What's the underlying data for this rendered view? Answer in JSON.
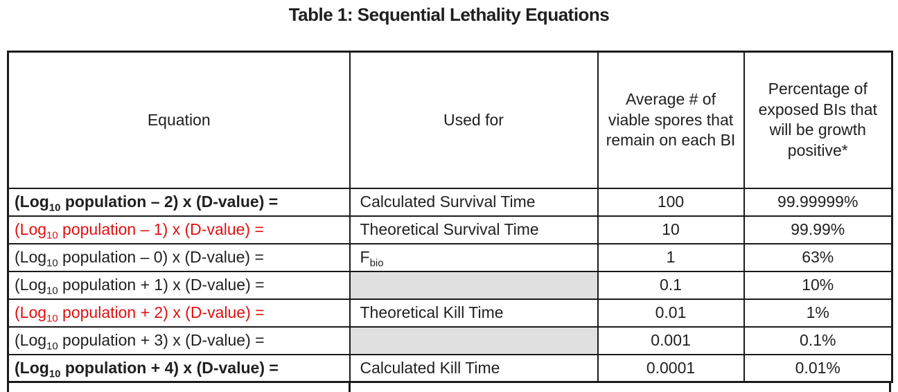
{
  "title": "Table 1: Sequential Lethality Equations",
  "table": {
    "headers": [
      "Equation",
      "Used for",
      "Average # of viable spores that remain on each BI",
      "Percentage of exposed BIs that will be growth positive*"
    ],
    "rows": [
      {
        "eq_pre": "(Log",
        "eq_sub": "10",
        "eq_rest": " population – 2) x (D-value) =",
        "style": "bold",
        "used_pre": "Calculated Survival Time",
        "used_sub": "",
        "used_shaded": false,
        "spores": "100",
        "pct": "99.99999%"
      },
      {
        "eq_pre": "(Log",
        "eq_sub": "10",
        "eq_rest": " population – 1) x (D-value) =",
        "style": "red",
        "used_pre": "Theoretical Survival Time",
        "used_sub": "",
        "used_shaded": false,
        "spores": "10",
        "pct": "99.99%"
      },
      {
        "eq_pre": "(Log",
        "eq_sub": "10",
        "eq_rest": " population – 0) x (D-value) =",
        "style": "normal",
        "used_pre": "F",
        "used_sub": "bio",
        "used_shaded": false,
        "spores": "1",
        "pct": "63%"
      },
      {
        "eq_pre": "(Log",
        "eq_sub": "10",
        "eq_rest": " population + 1) x (D-value) =",
        "style": "normal",
        "used_pre": "",
        "used_sub": "",
        "used_shaded": true,
        "spores": "0.1",
        "pct": "10%"
      },
      {
        "eq_pre": "(Log",
        "eq_sub": "10",
        "eq_rest": " population + 2) x (D-value) =",
        "style": "red",
        "used_pre": "Theoretical Kill Time",
        "used_sub": "",
        "used_shaded": false,
        "spores": "0.01",
        "pct": "1%"
      },
      {
        "eq_pre": "(Log",
        "eq_sub": "10",
        "eq_rest": " population + 3) x (D-value) =",
        "style": "normal",
        "used_pre": "",
        "used_sub": "",
        "used_shaded": true,
        "spores": "0.001",
        "pct": "0.1%"
      },
      {
        "eq_pre": "(Log",
        "eq_sub": "10",
        "eq_rest": " population + 4) x (D-value) =",
        "style": "bold",
        "used_pre": "Calculated Kill Time",
        "used_sub": "",
        "used_shaded": false,
        "spores": "0.0001",
        "pct": "0.01%"
      }
    ]
  },
  "colors": {
    "highlight_red": "#e01111",
    "shaded_cell_gray": "#e0e0e0",
    "border_black": "#1a1a1a",
    "text_black": "#1f1f1f"
  }
}
